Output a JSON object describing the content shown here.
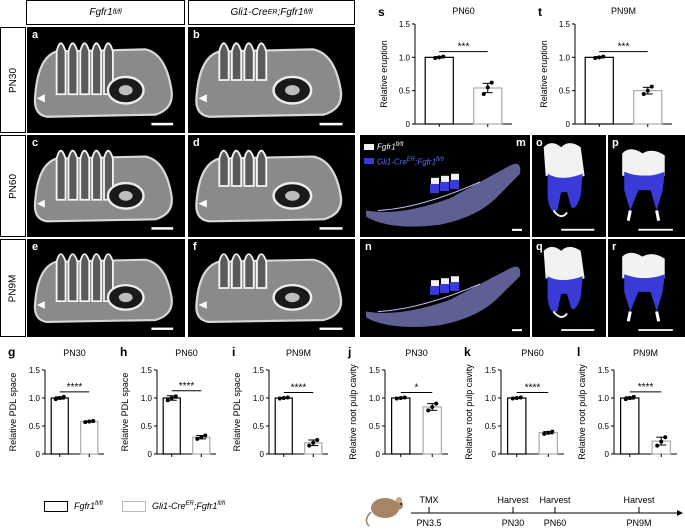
{
  "headers": {
    "col1": "Fgfr1",
    "col1_sup": "fl/fl",
    "col2": "Gli1-Cre",
    "col2_sup1": "ER",
    "col2_mid": ";Fgfr1",
    "col2_sup2": "fl/fl"
  },
  "row_labels": [
    "PN30",
    "PN60",
    "PN9M"
  ],
  "ct_panels": [
    "a",
    "b",
    "c",
    "d",
    "e",
    "f"
  ],
  "render_panels": [
    "m",
    "n",
    "o",
    "p",
    "q",
    "r"
  ],
  "render_legend": {
    "ctrl": "Fgfr1",
    "ctrl_sup": "fl/fl",
    "mut": "Gli1-Cre",
    "mut_sup1": "ER",
    "mut_mid": ";Fgfr1",
    "mut_sup2": "fl/fl"
  },
  "bottom_legend": {
    "ctrl": "Fgfr1",
    "ctrl_sup": "fl/fl",
    "mut": "Gli1-Cre",
    "mut_sup1": "ER",
    "mut_mid": ";Fgfr1",
    "mut_sup2": "fl/fl"
  },
  "timeline": {
    "events": [
      {
        "top": "TMX",
        "bottom": "PN3.5"
      },
      {
        "top": "Harvest",
        "bottom": "PN30"
      },
      {
        "top": "Harvest",
        "bottom": "PN60"
      },
      {
        "top": "Harvest",
        "bottom": "PN9M"
      }
    ]
  },
  "colors": {
    "mutant_blue": "#3a3ad6",
    "tooth_white": "#f2f2f2",
    "bone_gray": "#9a9aa6",
    "mandible_tint": "#7d7fc4"
  },
  "chart_data": [
    {
      "id": "s",
      "type": "bar",
      "title": "PN60",
      "ylabel": "Relative eruption",
      "categories": [
        "Fgfr1 fl/fl",
        "Gli1-CreER;Fgfr1 fl/fl"
      ],
      "values": [
        1.0,
        0.54
      ],
      "errors": [
        0.01,
        0.07
      ],
      "points": [
        [
          0.99,
          1.0,
          1.01
        ],
        [
          0.45,
          0.55,
          0.62
        ]
      ],
      "ylim": [
        0,
        1.5
      ],
      "yticks": [
        "0",
        "0.5",
        "1.0",
        "1.5"
      ],
      "significance": "***"
    },
    {
      "id": "t",
      "type": "bar",
      "title": "PN9M",
      "ylabel": "Relative eruption",
      "categories": [
        "Fgfr1 fl/fl",
        "Gli1-CreER;Fgfr1 fl/fl"
      ],
      "values": [
        1.0,
        0.5
      ],
      "errors": [
        0.01,
        0.05
      ],
      "points": [
        [
          0.99,
          1.0,
          1.01
        ],
        [
          0.45,
          0.5,
          0.56
        ]
      ],
      "ylim": [
        0,
        1.5
      ],
      "yticks": [
        "0",
        "0.5",
        "1.0",
        "1.5"
      ],
      "significance": "***"
    },
    {
      "id": "g",
      "type": "bar",
      "title": "PN30",
      "ylabel": "Relative PDL space",
      "categories": [
        "Fgfr1 fl/fl",
        "Gli1-CreER;Fgfr1 fl/fl"
      ],
      "values": [
        1.0,
        0.58
      ],
      "errors": [
        0.02,
        0.01
      ],
      "points": [
        [
          0.98,
          1.0,
          1.02
        ],
        [
          0.57,
          0.58,
          0.59
        ]
      ],
      "ylim": [
        0,
        1.5
      ],
      "yticks": [
        "0",
        "0.5",
        "1.0",
        "1.5"
      ],
      "significance": "****"
    },
    {
      "id": "h",
      "type": "bar",
      "title": "PN60",
      "ylabel": "Relative PDL space",
      "categories": [
        "Fgfr1 fl/fl",
        "Gli1-CreER;Fgfr1 fl/fl"
      ],
      "values": [
        1.0,
        0.3
      ],
      "errors": [
        0.04,
        0.03
      ],
      "points": [
        [
          0.96,
          1.0,
          1.03
        ],
        [
          0.27,
          0.3,
          0.33
        ]
      ],
      "ylim": [
        0,
        1.5
      ],
      "yticks": [
        "0",
        "0.5",
        "1.0",
        "1.5"
      ],
      "significance": "****"
    },
    {
      "id": "i",
      "type": "bar",
      "title": "PN9M",
      "ylabel": "Relative PDL space",
      "categories": [
        "Fgfr1 fl/fl",
        "Gli1-CreER;Fgfr1 fl/fl"
      ],
      "values": [
        1.0,
        0.2
      ],
      "errors": [
        0.01,
        0.05
      ],
      "points": [
        [
          0.99,
          1.0,
          1.01
        ],
        [
          0.15,
          0.2,
          0.25
        ]
      ],
      "ylim": [
        0,
        1.5
      ],
      "yticks": [
        "0",
        "0.5",
        "1.0",
        "1.5"
      ],
      "significance": "****"
    },
    {
      "id": "j",
      "type": "bar",
      "title": "PN30",
      "ylabel": "Relative root pulp cavity",
      "categories": [
        "Fgfr1 fl/fl",
        "Gli1-CreER;Fgfr1 fl/fl"
      ],
      "values": [
        1.0,
        0.84
      ],
      "errors": [
        0.01,
        0.06
      ],
      "points": [
        [
          0.99,
          1.0,
          1.01
        ],
        [
          0.78,
          0.84,
          0.9
        ]
      ],
      "ylim": [
        0,
        1.5
      ],
      "yticks": [
        "0",
        "0.5",
        "1.0",
        "1.5"
      ],
      "significance": "*"
    },
    {
      "id": "k",
      "type": "bar",
      "title": "PN60",
      "ylabel": "Relative root pulp cavity",
      "categories": [
        "Fgfr1 fl/fl",
        "Gli1-CreER;Fgfr1 fl/fl"
      ],
      "values": [
        1.0,
        0.38
      ],
      "errors": [
        0.01,
        0.02
      ],
      "points": [
        [
          0.99,
          1.0,
          1.01
        ],
        [
          0.36,
          0.38,
          0.4
        ]
      ],
      "ylim": [
        0,
        1.5
      ],
      "yticks": [
        "0",
        "0.5",
        "1.0",
        "1.5"
      ],
      "significance": "****"
    },
    {
      "id": "l",
      "type": "bar",
      "title": "PN9M",
      "ylabel": "Relative root pulp cavity",
      "categories": [
        "Fgfr1 fl/fl",
        "Gli1-CreER;Fgfr1 fl/fl"
      ],
      "values": [
        1.0,
        0.23
      ],
      "errors": [
        0.02,
        0.07
      ],
      "points": [
        [
          0.98,
          1.0,
          1.02
        ],
        [
          0.15,
          0.22,
          0.3
        ]
      ],
      "ylim": [
        0,
        1.5
      ],
      "yticks": [
        "0",
        "0.5",
        "1.0",
        "1.5"
      ],
      "significance": "****"
    }
  ]
}
